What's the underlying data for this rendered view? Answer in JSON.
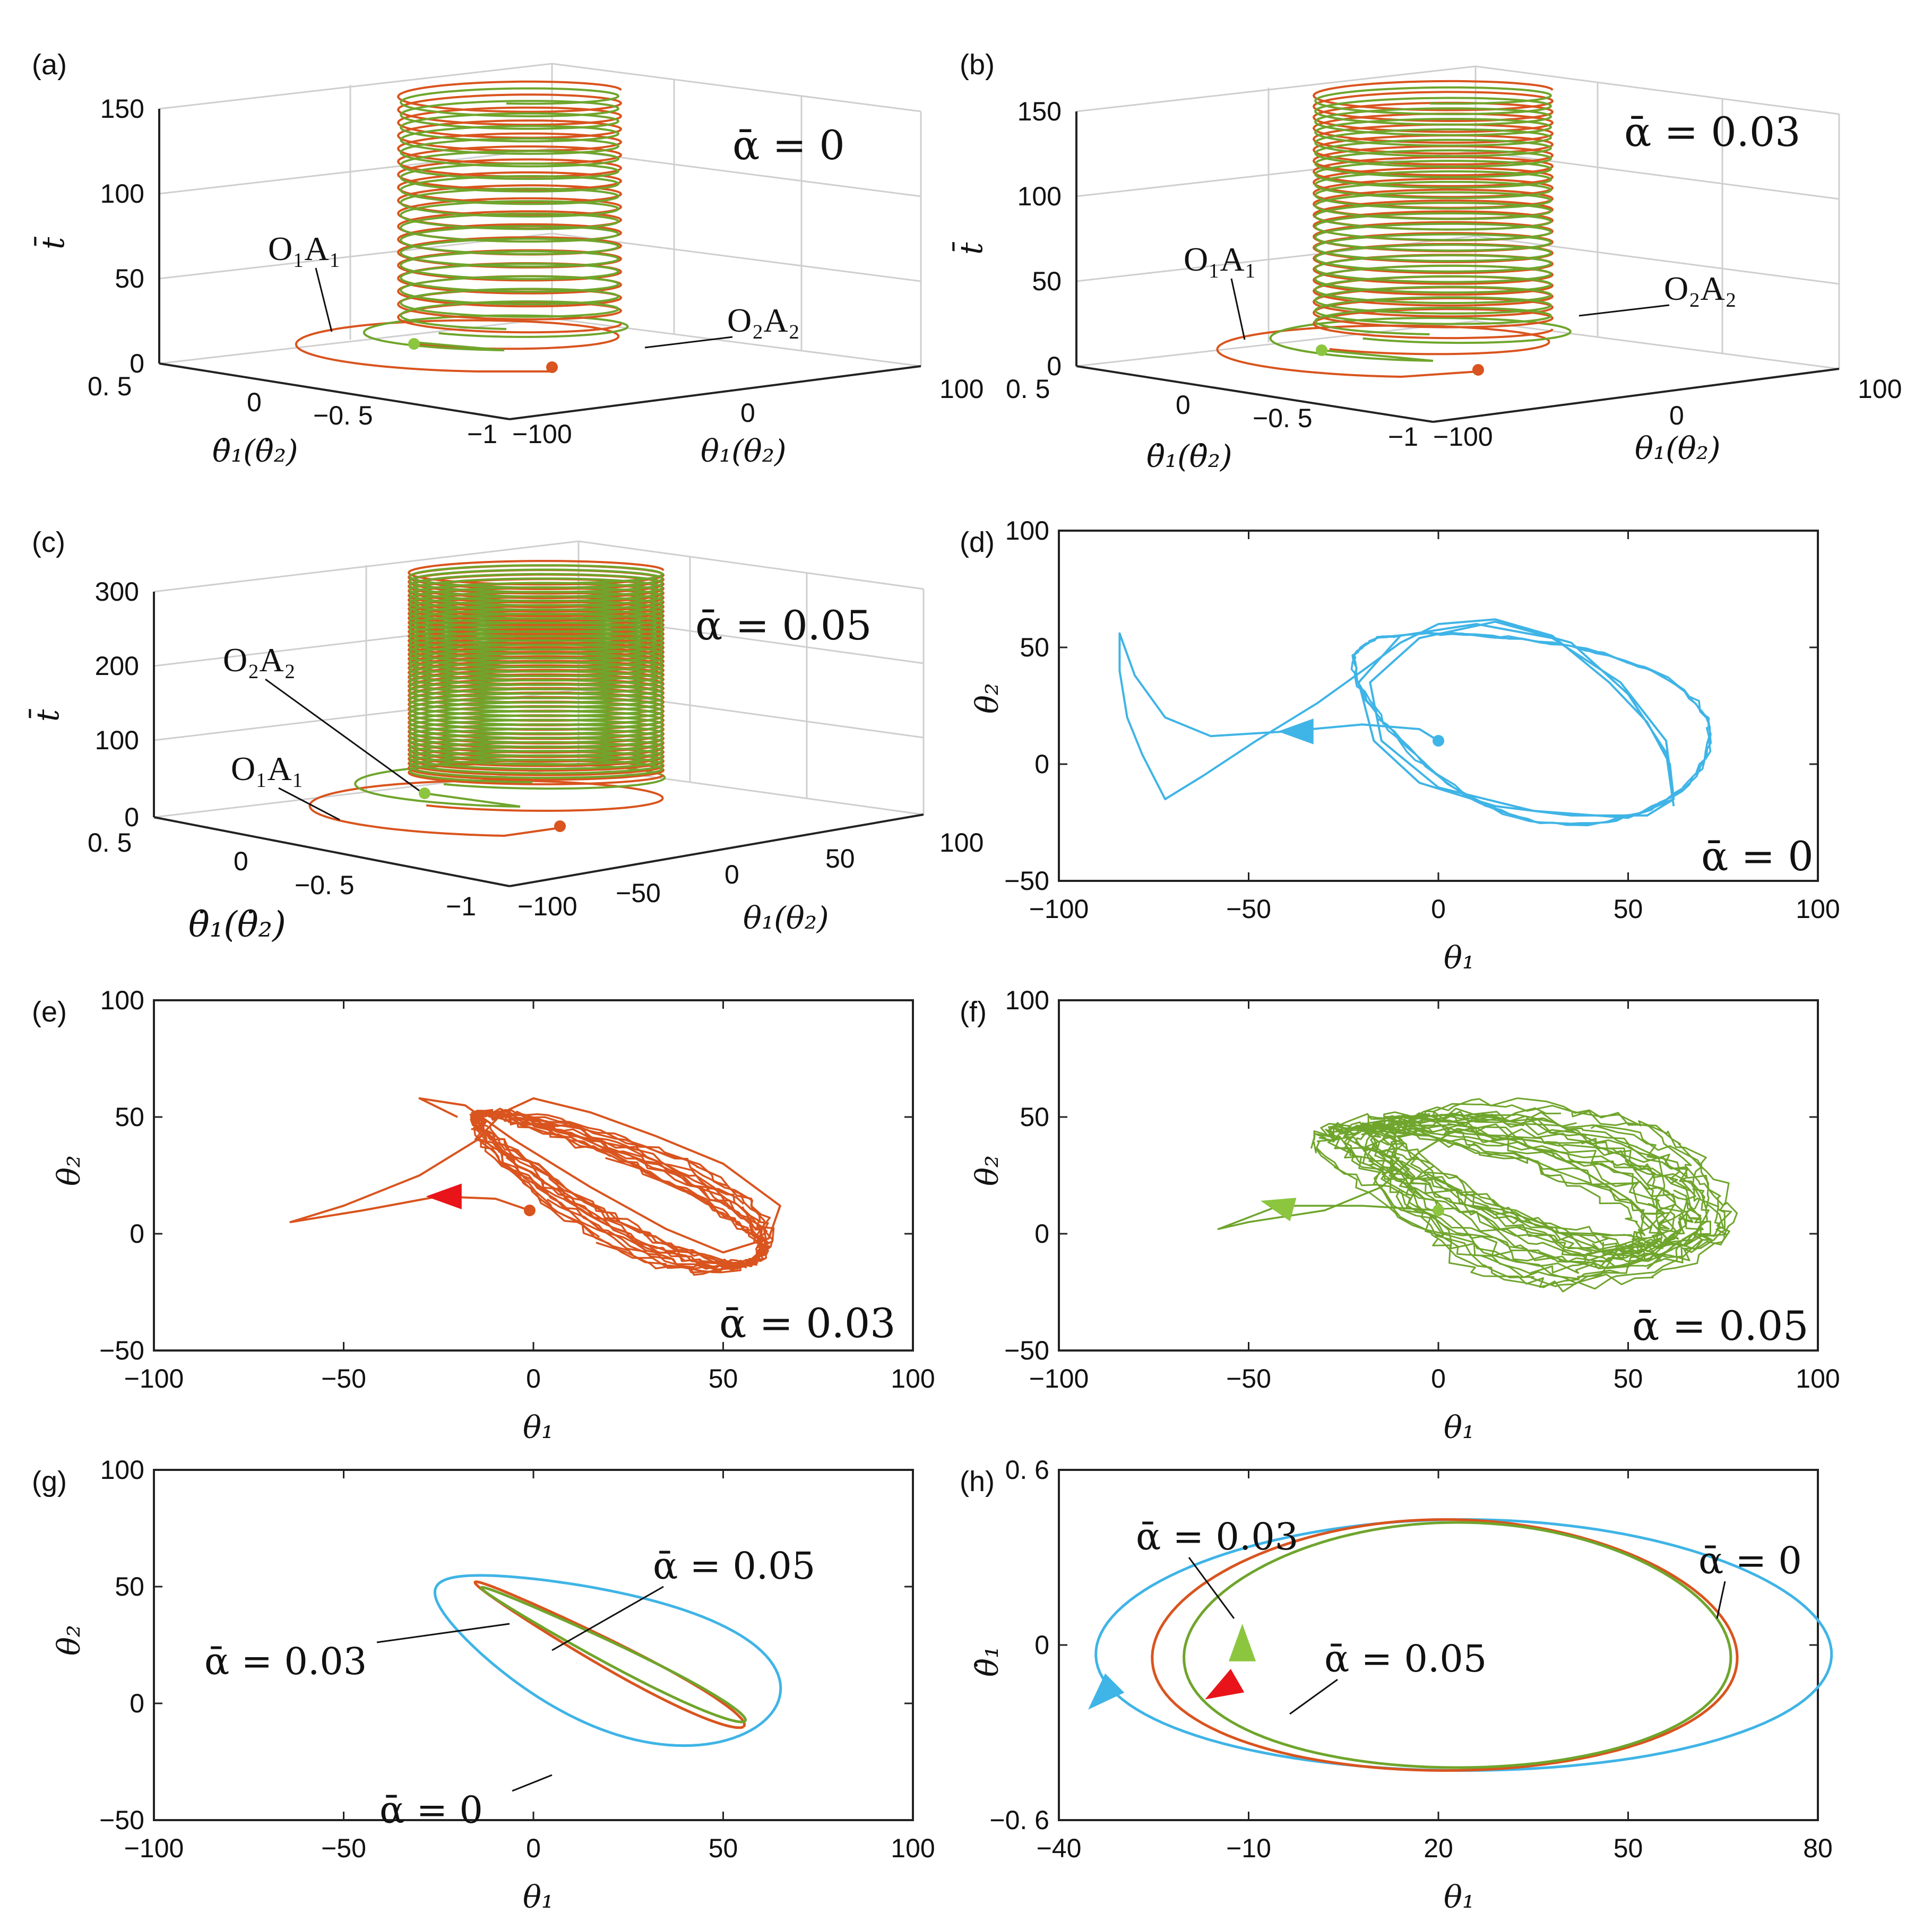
{
  "colors": {
    "orange": "#d9541e",
    "green": "#6fa52c",
    "lightgreen": "#8cc63f",
    "blue": "#3fb4e6",
    "red": "#e8141a",
    "axis": "#222222",
    "grid": "#cfcfcf"
  },
  "chart_data": [
    {
      "id": "a",
      "panel_label": "(a)",
      "type": "line",
      "dims": "3d",
      "alpha_label": "ᾱ = 0",
      "zlabel": "t̄",
      "xlabel": "θ₁(θ₂)",
      "ylabel": "θ̇₁(θ̇₂)",
      "ztick_labels": [
        "0",
        "50",
        "100",
        "150"
      ],
      "zlim": [
        0,
        150
      ],
      "xtick_labels": [
        "−100",
        "0",
        "100"
      ],
      "ytick_labels": [
        "0. 5",
        "0",
        "−0. 5",
        "−1"
      ],
      "series": [
        {
          "name": "O₁A₁",
          "color": "orange",
          "turns": 18,
          "t_end": 150
        },
        {
          "name": "O₂A₂",
          "color": "green",
          "turns": 18,
          "t_end": 150
        }
      ]
    },
    {
      "id": "b",
      "panel_label": "(b)",
      "type": "line",
      "dims": "3d",
      "alpha_label": "ᾱ = 0.03",
      "zlabel": "t̄",
      "xlabel": "θ₁(θ₂)",
      "ylabel": "θ̇₁(θ̇₂)",
      "ztick_labels": [
        "0",
        "50",
        "100",
        "150"
      ],
      "zlim": [
        0,
        150
      ],
      "xtick_labels": [
        "−100",
        "0",
        "100"
      ],
      "ytick_labels": [
        "0. 5",
        "0",
        "−0. 5",
        "−1"
      ],
      "series": [
        {
          "name": "O₁A₁",
          "color": "orange",
          "turns": 22,
          "t_end": 150
        },
        {
          "name": "O₂A₂",
          "color": "green",
          "turns": 22,
          "t_end": 150
        }
      ]
    },
    {
      "id": "c",
      "panel_label": "(c)",
      "type": "line",
      "dims": "3d",
      "alpha_label": "ᾱ = 0.05",
      "zlabel": "t̄",
      "xlabel": "θ₁(θ₂)",
      "ylabel": "θ̇₁(θ̇₂)",
      "ztick_labels": [
        "0",
        "100",
        "200",
        "300"
      ],
      "zlim": [
        0,
        300
      ],
      "xtick_labels": [
        "−100",
        "−50",
        "0",
        "50",
        "100"
      ],
      "ytick_labels": [
        "0. 5",
        "0",
        "−0. 5",
        "−1"
      ],
      "series": [
        {
          "name": "O₁A₁",
          "color": "orange",
          "turns": 45,
          "t_end": 300
        },
        {
          "name": "O₂A₂",
          "color": "green",
          "turns": 45,
          "t_end": 300
        }
      ]
    },
    {
      "id": "d",
      "panel_label": "(d)",
      "type": "line",
      "alpha_label": "ᾱ = 0",
      "xlabel": "θ₁",
      "ylabel": "θ₂",
      "xlim": [
        -100,
        100
      ],
      "ylim": [
        -50,
        100
      ],
      "xticks": [
        -100,
        -50,
        0,
        50,
        100
      ],
      "yticks": [
        -50,
        0,
        50,
        100
      ],
      "xtick_labels": [
        "−100",
        "−50",
        "0",
        "50",
        "100"
      ],
      "ytick_labels": [
        "−50",
        "0",
        "50",
        "100"
      ],
      "series": [
        {
          "name": "ᾱ = 0",
          "color": "blue",
          "start": [
            0,
            10
          ],
          "arrow": [
            -37,
            14
          ]
        }
      ]
    },
    {
      "id": "e",
      "panel_label": "(e)",
      "type": "line",
      "alpha_label": "ᾱ = 0.03",
      "xlabel": "θ₁",
      "ylabel": "θ₂",
      "xlim": [
        -100,
        100
      ],
      "ylim": [
        -50,
        100
      ],
      "xticks": [
        -100,
        -50,
        0,
        50,
        100
      ],
      "yticks": [
        -50,
        0,
        50,
        100
      ],
      "xtick_labels": [
        "−100",
        "−50",
        "0",
        "50",
        "100"
      ],
      "ytick_labels": [
        "−50",
        "0",
        "50",
        "100"
      ],
      "series": [
        {
          "name": "ᾱ = 0.03",
          "color": "orange",
          "start": [
            -1,
            10
          ],
          "arrow": [
            -23,
            16
          ]
        }
      ]
    },
    {
      "id": "f",
      "panel_label": "(f)",
      "type": "line",
      "alpha_label": "ᾱ = 0.05",
      "xlabel": "θ₁",
      "ylabel": "θ₂",
      "xlim": [
        -100,
        100
      ],
      "ylim": [
        -50,
        100
      ],
      "xticks": [
        -100,
        -50,
        0,
        50,
        100
      ],
      "yticks": [
        -50,
        0,
        50,
        100
      ],
      "xtick_labels": [
        "−100",
        "−50",
        "0",
        "50",
        "100"
      ],
      "ytick_labels": [
        "−50",
        "0",
        "50",
        "100"
      ],
      "series": [
        {
          "name": "ᾱ = 0.05",
          "color": "green",
          "start": [
            0,
            10
          ],
          "arrow": [
            -42,
            12
          ]
        }
      ]
    },
    {
      "id": "g",
      "panel_label": "(g)",
      "type": "line",
      "xlabel": "θ₁",
      "ylabel": "θ₂",
      "xlim": [
        -100,
        100
      ],
      "ylim": [
        -50,
        100
      ],
      "xticks": [
        -100,
        -50,
        0,
        50,
        100
      ],
      "yticks": [
        -50,
        0,
        50,
        100
      ],
      "xtick_labels": [
        "−100",
        "−50",
        "0",
        "50",
        "100"
      ],
      "ytick_labels": [
        "−50",
        "0",
        "50",
        "100"
      ],
      "series": [
        {
          "name": "ᾱ = 0",
          "color": "blue"
        },
        {
          "name": "ᾱ = 0.03",
          "color": "orange"
        },
        {
          "name": "ᾱ = 0.05",
          "color": "green"
        }
      ]
    },
    {
      "id": "h",
      "panel_label": "(h)",
      "type": "line",
      "xlabel": "θ₁",
      "ylabel": "θ̇₁",
      "xlim": [
        -40,
        80
      ],
      "ylim": [
        -0.6,
        0.6
      ],
      "xticks": [
        -40,
        -10,
        20,
        50,
        80
      ],
      "yticks": [
        -0.6,
        0,
        0.6
      ],
      "xtick_labels": [
        "−40",
        "−10",
        "20",
        "50",
        "80"
      ],
      "ytick_labels": [
        "−0. 6",
        "0",
        "0. 6"
      ],
      "series": [
        {
          "name": "ᾱ = 0",
          "color": "blue",
          "arrow": [
            -33,
            -0.17
          ]
        },
        {
          "name": "ᾱ = 0.03",
          "color": "orange",
          "arrow": [
            -14,
            -0.15
          ]
        },
        {
          "name": "ᾱ = 0.05",
          "color": "green",
          "arrow": [
            -11,
            0.0
          ]
        }
      ]
    }
  ]
}
